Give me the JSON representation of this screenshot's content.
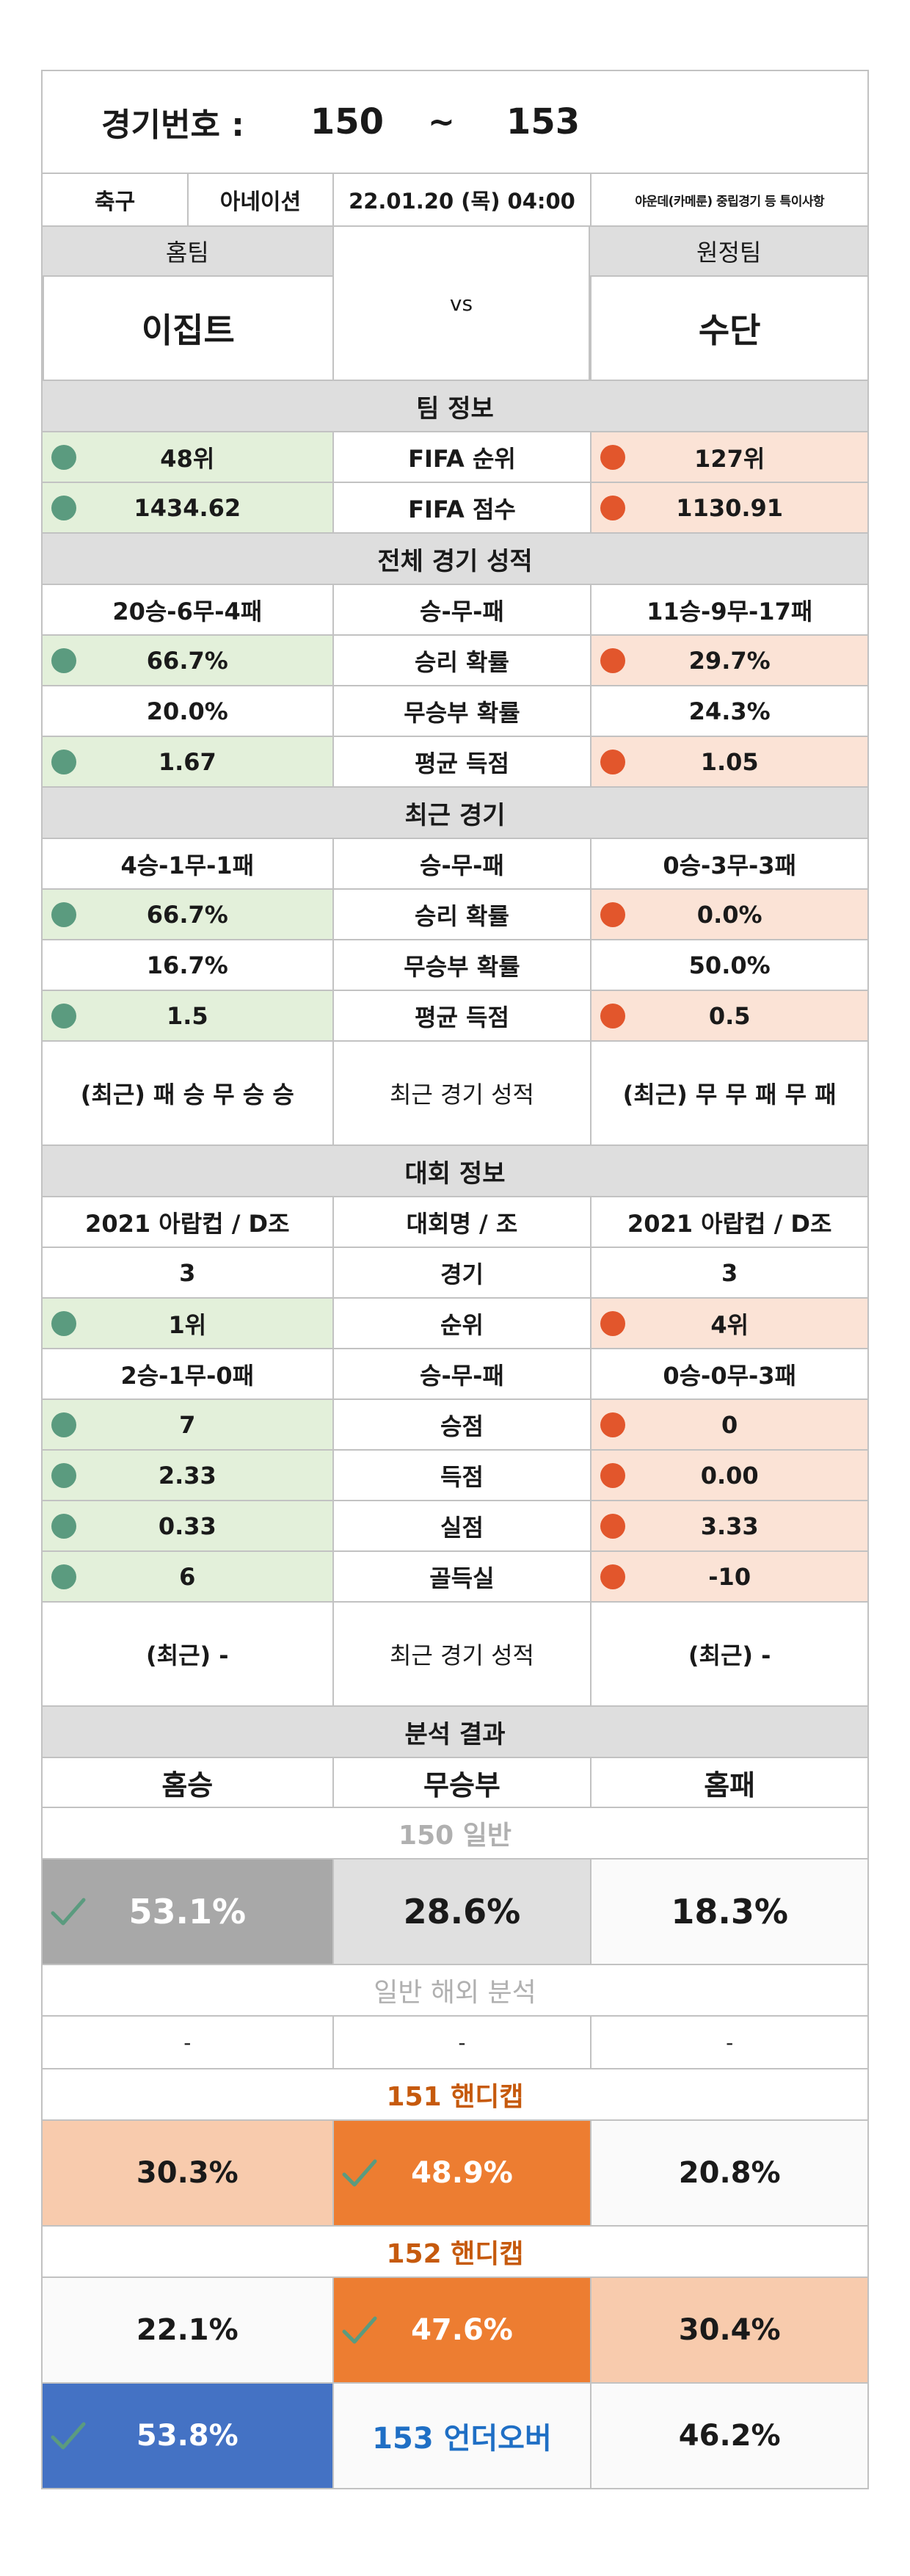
{
  "header": {
    "match_label": "경기번호 :",
    "num_start": "150",
    "tilde": "~",
    "num_end": "153"
  },
  "info": {
    "sport": "축구",
    "league": "아네이션",
    "datetime": "22.01.20 (목) 04:00",
    "note": "야운데(카메룬) 중립경기 등 특이사항"
  },
  "teams": {
    "home_label": "홈팀",
    "away_label": "원정팀",
    "home_name": "이집트",
    "away_name": "수단",
    "vs": "vs"
  },
  "sections": {
    "team_info": "팀 정보",
    "overall": "전체 경기 성적",
    "recent": "최근 경기",
    "tournament": "대회 정보",
    "analysis": "분석 결과"
  },
  "team_info": [
    {
      "label": "FIFA 순위",
      "home": "48위",
      "away": "127위"
    },
    {
      "label": "FIFA 점수",
      "home": "1434.62",
      "away": "1130.91"
    }
  ],
  "overall": [
    {
      "label": "승-무-패",
      "home": "20승-6무-4패",
      "away": "11승-9무-17패",
      "hl": false
    },
    {
      "label": "승리 확률",
      "home": "66.7%",
      "away": "29.7%",
      "hl": true
    },
    {
      "label": "무승부 확률",
      "home": "20.0%",
      "away": "24.3%",
      "hl": false
    },
    {
      "label": "평균 득점",
      "home": "1.67",
      "away": "1.05",
      "hl": true
    }
  ],
  "recent": [
    {
      "label": "승-무-패",
      "home": "4승-1무-1패",
      "away": "0승-3무-3패",
      "hl": false
    },
    {
      "label": "승리 확률",
      "home": "66.7%",
      "away": "0.0%",
      "hl": true
    },
    {
      "label": "무승부 확률",
      "home": "16.7%",
      "away": "50.0%",
      "hl": false
    },
    {
      "label": "평균 득점",
      "home": "1.5",
      "away": "0.5",
      "hl": true
    }
  ],
  "recent_form": {
    "label": "최근 경기 성적",
    "home": "(최근) 패 승 무 승 승",
    "away": "(최근) 무 무 패 무 패"
  },
  "tournament": [
    {
      "label": "대회명 / 조",
      "home": "2021 아랍컵 / D조",
      "away": "2021 아랍컵 / D조",
      "hl": false
    },
    {
      "label": "경기",
      "home": "3",
      "away": "3",
      "hl": false
    },
    {
      "label": "순위",
      "home": "1위",
      "away": "4위",
      "hl": true
    },
    {
      "label": "승-무-패",
      "home": "2승-1무-0패",
      "away": "0승-0무-3패",
      "hl": false
    },
    {
      "label": "승점",
      "home": "7",
      "away": "0",
      "hl": true
    },
    {
      "label": "득점",
      "home": "2.33",
      "away": "0.00",
      "hl": true
    },
    {
      "label": "실점",
      "home": "0.33",
      "away": "3.33",
      "hl": true
    },
    {
      "label": "골득실",
      "home": "6",
      "away": "-10",
      "hl": true
    }
  ],
  "tournament_form": {
    "label": "최근 경기 성적",
    "home": "(최근) -",
    "away": "(최근) -"
  },
  "analysis": {
    "col_home_win": "홈승",
    "col_draw": "무승부",
    "col_home_loss": "홈패",
    "general_title": "150 일반",
    "general": {
      "win": "53.1%",
      "draw": "28.6%",
      "loss": "18.3%"
    },
    "overseas_title": "일반 해외 분석",
    "overseas": {
      "win": "-",
      "draw": "-",
      "loss": "-"
    },
    "h151_title": "151 핸디캡",
    "h151": {
      "win": "30.3%",
      "draw": "48.9%",
      "loss": "20.8%"
    },
    "h152_title": "152 핸디캡",
    "h152": {
      "win": "22.1%",
      "draw": "47.6%",
      "loss": "30.4%"
    },
    "ou153": {
      "over": "53.8%",
      "label": "153 언더오버",
      "under": "46.2%"
    }
  },
  "colors": {
    "green_dot": "#5b9b7f",
    "red_dot": "#e2562c",
    "green_bg": "#e3f0da",
    "salmon_bg": "#fbe3d6",
    "orange": "#ed7d31",
    "blue": "#4472c4"
  },
  "icons": {
    "check": "check-icon",
    "dot": "dot-icon"
  }
}
